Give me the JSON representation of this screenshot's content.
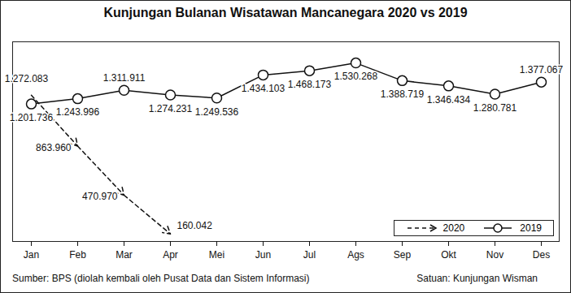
{
  "chart_data": {
    "type": "line",
    "title": "Kunjungan Bulanan Wisatawan Mancanegara 2020 vs 2019",
    "source": "Sumber: BPS (diolah kembali oleh Pusat Data dan Sistem Informasi)",
    "unit": "Satuan: Kunjungan Wisman",
    "categories": [
      "Jan",
      "Feb",
      "Mar",
      "Apr",
      "Mei",
      "Jun",
      "Jul",
      "Ags",
      "Sep",
      "Okt",
      "Nov",
      "Des"
    ],
    "series": [
      {
        "name": "2020",
        "color": "#111111",
        "line_style": "dashed",
        "marker": "arrow",
        "values": [
          1272083,
          863960,
          470970,
          160042,
          null,
          null,
          null,
          null,
          null,
          null,
          null,
          null
        ],
        "value_labels": [
          "1.272.083",
          "863.960",
          "470.970",
          "160.042",
          null,
          null,
          null,
          null,
          null,
          null,
          null,
          null
        ]
      },
      {
        "name": "2019",
        "color": "#111111",
        "line_style": "solid",
        "marker": "circle",
        "values": [
          1201736,
          1243996,
          1311911,
          1274231,
          1249536,
          1434103,
          1468173,
          1530268,
          1388719,
          1346434,
          1280781,
          1377067
        ],
        "value_labels": [
          "1.201.736",
          "1.243.996",
          "1.311.911",
          "1.274.231",
          "1.249.536",
          "1.434.103",
          "1.468.173",
          "1.530.268",
          "1.388.719",
          "1.346.434",
          "1.280.781",
          "1.377.067"
        ]
      }
    ],
    "ylim": [
      100000,
      1700000
    ],
    "yticks": [],
    "tick_labels": "x",
    "grid": false,
    "data_labels": true,
    "legend": "bottom-right"
  }
}
